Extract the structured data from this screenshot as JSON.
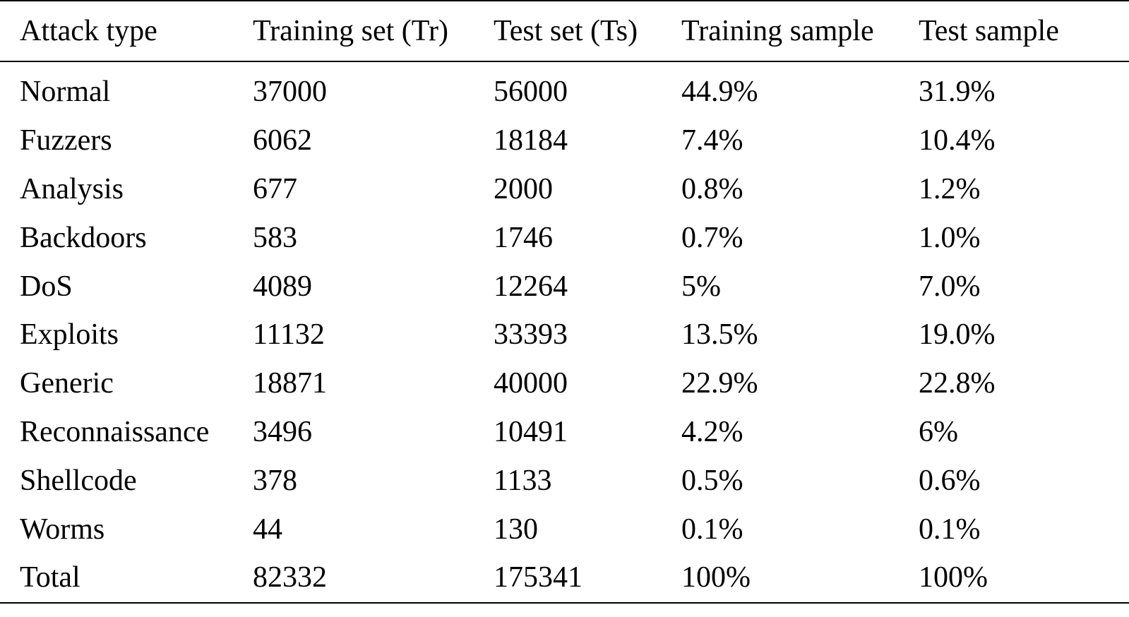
{
  "table": {
    "columns": [
      "Attack type",
      "Training set (Tr)",
      "Test set (Ts)",
      "Training sample",
      "Test sample"
    ],
    "rows": [
      [
        "Normal",
        "37000",
        "56000",
        "44.9%",
        "31.9%"
      ],
      [
        "Fuzzers",
        "6062",
        "18184",
        "7.4%",
        "10.4%"
      ],
      [
        "Analysis",
        "677",
        "2000",
        "0.8%",
        "1.2%"
      ],
      [
        "Backdoors",
        "583",
        "1746",
        "0.7%",
        "1.0%"
      ],
      [
        "DoS",
        "4089",
        "12264",
        "5%",
        "7.0%"
      ],
      [
        "Exploits",
        "11132",
        "33393",
        "13.5%",
        "19.0%"
      ],
      [
        "Generic",
        "18871",
        "40000",
        "22.9%",
        "22.8%"
      ],
      [
        "Reconnaissance",
        "3496",
        "10491",
        "4.2%",
        "6%"
      ],
      [
        "Shellcode",
        "378",
        "1133",
        "0.5%",
        "0.6%"
      ],
      [
        "Worms",
        "44",
        "130",
        "0.1%",
        "0.1%"
      ],
      [
        "Total",
        "82332",
        "175341",
        "100%",
        "100%"
      ]
    ]
  }
}
